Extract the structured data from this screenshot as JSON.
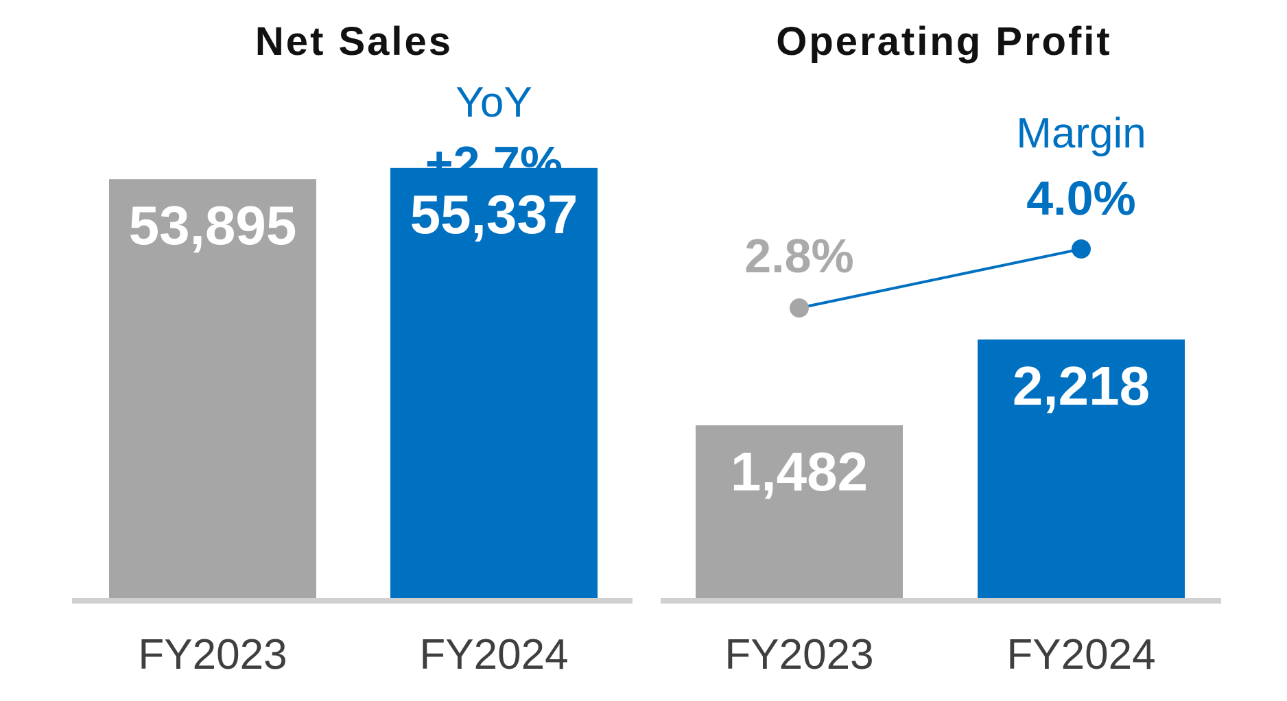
{
  "colors": {
    "prior_year": "#a6a6a6",
    "current_year": "#0070c0",
    "baseline": "#d0d0d0",
    "title_text": "#111111",
    "tick_text": "#3f3f3f",
    "value_text": "#ffffff",
    "margin_old_text": "#aaaaaa"
  },
  "chart_data": [
    {
      "type": "bar",
      "title": "Net Sales",
      "categories": [
        "FY2023",
        "FY2024"
      ],
      "values": [
        53895,
        55337
      ],
      "value_labels": [
        "53,895",
        "55,337"
      ],
      "ylim": [
        0,
        60000
      ],
      "grid": false,
      "annotation": {
        "caption": "YoY",
        "value": "+2.7%"
      }
    },
    {
      "type": "bar",
      "title": "Operating Profit",
      "categories": [
        "FY2023",
        "FY2024"
      ],
      "values": [
        1482,
        2218
      ],
      "value_labels": [
        "1,482",
        "2,218"
      ],
      "ylim": [
        0,
        4000
      ],
      "grid": false,
      "overlay_line": {
        "caption": "Margin",
        "values": [
          2.8,
          4.0
        ],
        "value_labels": [
          "2.8%",
          "4.0%"
        ],
        "ylim": [
          0,
          5
        ]
      }
    }
  ]
}
